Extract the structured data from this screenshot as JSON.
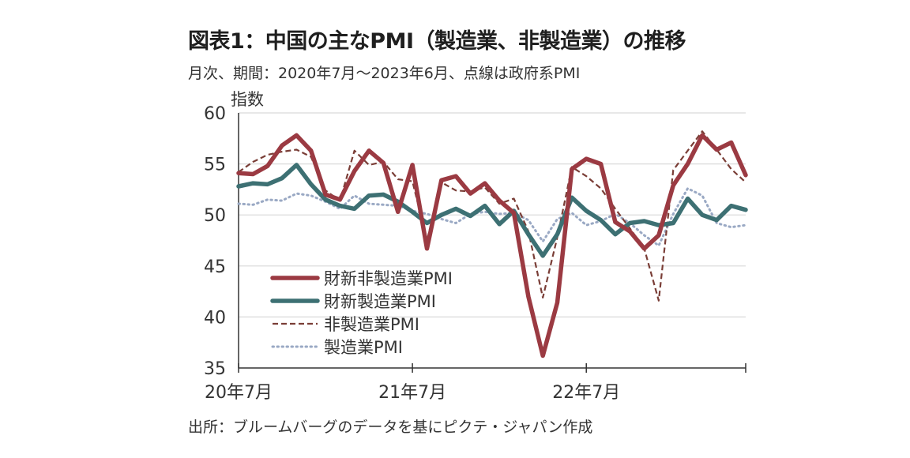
{
  "title": "図表1：中国の主なPMI（製造業、非製造業）の推移",
  "subtitle": "月次、期間：2020年7月～2023年6月、点線は政府系PMI",
  "source": "出所：ブルームバーグのデータを基にピクテ・ジャパン作成",
  "chart_data": {
    "type": "line",
    "ylabel": "指数",
    "ylim": [
      35,
      60
    ],
    "yticks": [
      "60",
      "55",
      "50",
      "45",
      "40",
      "35"
    ],
    "xtick_labels": [
      {
        "label": "20年7月",
        "index": 0
      },
      {
        "label": "21年7月",
        "index": 12
      },
      {
        "label": "22年7月",
        "index": 24
      }
    ],
    "x": [
      "2020-07",
      "2020-08",
      "2020-09",
      "2020-10",
      "2020-11",
      "2020-12",
      "2021-01",
      "2021-02",
      "2021-03",
      "2021-04",
      "2021-05",
      "2021-06",
      "2021-07",
      "2021-08",
      "2021-09",
      "2021-10",
      "2021-11",
      "2021-12",
      "2022-01",
      "2022-02",
      "2022-03",
      "2022-04",
      "2022-05",
      "2022-06",
      "2022-07",
      "2022-08",
      "2022-09",
      "2022-10",
      "2022-11",
      "2022-12",
      "2023-01",
      "2023-02",
      "2023-03",
      "2023-04",
      "2023-05",
      "2023-06"
    ],
    "grid": true,
    "legend_position": "bottom-left",
    "series": [
      {
        "name": "財新非製造業PMI",
        "color": "#9b3a42",
        "style": "solid-thick",
        "values": [
          54.1,
          54.0,
          54.8,
          56.8,
          57.8,
          56.3,
          52.0,
          51.5,
          54.3,
          56.3,
          55.1,
          50.3,
          54.9,
          46.7,
          53.4,
          53.8,
          52.1,
          53.1,
          51.4,
          50.2,
          42.0,
          36.2,
          41.4,
          54.5,
          55.5,
          55.0,
          49.3,
          48.4,
          46.7,
          48.0,
          52.9,
          55.0,
          57.8,
          56.4,
          57.1,
          53.9
        ]
      },
      {
        "name": "財新製造業PMI",
        "color": "#3d7073",
        "style": "solid-thick",
        "values": [
          52.8,
          53.1,
          53.0,
          53.6,
          54.9,
          53.0,
          51.5,
          50.9,
          50.6,
          51.9,
          52.0,
          51.3,
          50.3,
          49.2,
          50.0,
          50.6,
          49.9,
          50.9,
          49.1,
          50.4,
          48.1,
          46.0,
          48.1,
          51.7,
          50.4,
          49.5,
          48.1,
          49.2,
          49.4,
          49.0,
          49.2,
          51.6,
          50.0,
          49.5,
          50.9,
          50.5
        ]
      },
      {
        "name": "非製造業PMI",
        "color": "#7a3e37",
        "style": "dashed",
        "values": [
          54.2,
          55.2,
          55.9,
          56.2,
          56.4,
          55.7,
          52.4,
          51.4,
          56.3,
          54.9,
          55.2,
          53.5,
          53.3,
          47.5,
          53.2,
          52.4,
          52.3,
          52.7,
          51.1,
          51.6,
          48.4,
          41.9,
          47.8,
          54.7,
          53.8,
          52.6,
          50.6,
          48.7,
          46.7,
          41.6,
          54.4,
          56.3,
          58.2,
          56.4,
          54.5,
          53.2
        ]
      },
      {
        "name": "製造業PMI",
        "color": "#9aa9c4",
        "style": "dotted",
        "values": [
          51.1,
          51.0,
          51.5,
          51.4,
          52.1,
          51.9,
          51.3,
          50.6,
          51.9,
          51.1,
          51.0,
          50.9,
          50.4,
          50.1,
          49.6,
          49.2,
          50.1,
          50.3,
          50.1,
          50.2,
          49.5,
          47.4,
          49.6,
          50.2,
          49.0,
          49.4,
          50.1,
          49.2,
          48.0,
          47.0,
          50.1,
          52.6,
          51.9,
          49.2,
          48.8,
          49.0
        ]
      }
    ]
  }
}
